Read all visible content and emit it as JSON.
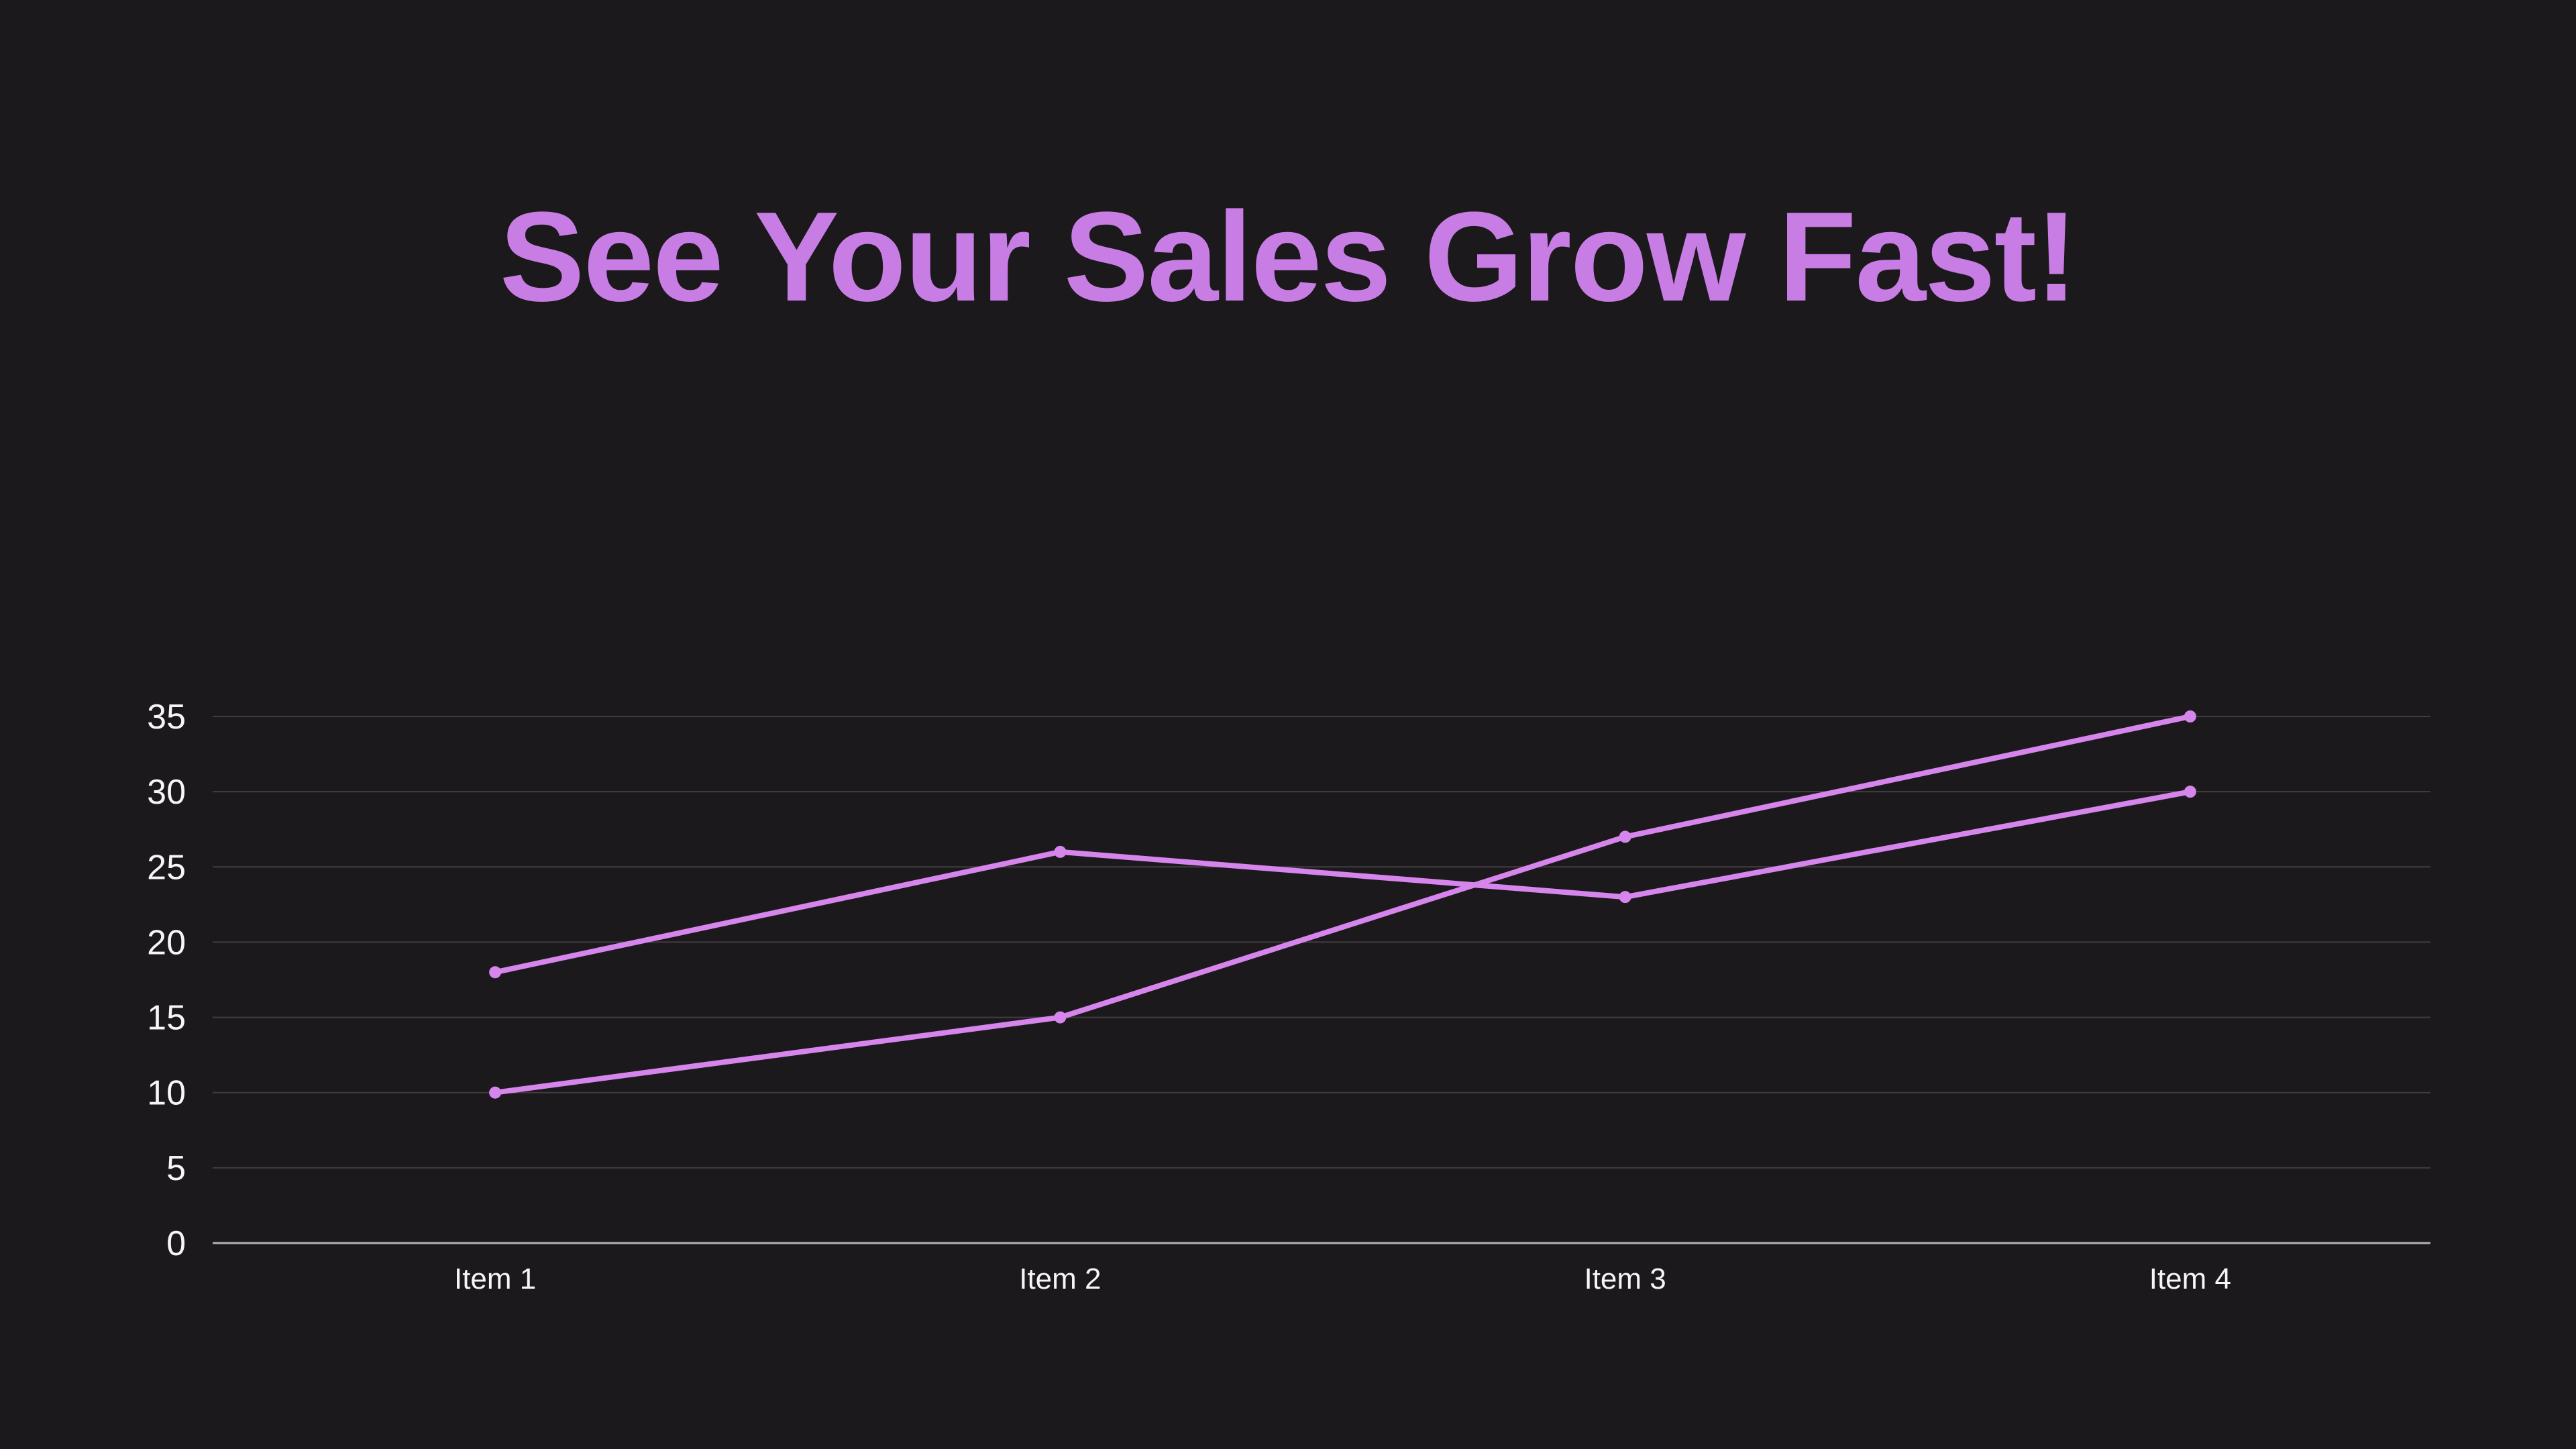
{
  "title": {
    "text": "See Your Sales Grow Fast!",
    "color": "#c77de4"
  },
  "chart_data": {
    "type": "line",
    "categories": [
      "Item 1",
      "Item 2",
      "Item 3",
      "Item 4"
    ],
    "series": [
      {
        "id": "series-1",
        "values": [
          18,
          26,
          23,
          30
        ]
      },
      {
        "id": "series-2",
        "values": [
          10,
          15,
          27,
          35
        ]
      }
    ],
    "y_ticks": [
      0,
      5,
      10,
      15,
      20,
      25,
      30,
      35
    ],
    "ylim": [
      0,
      35
    ],
    "grid": true,
    "legend": "none",
    "line_color": "#d685ec",
    "background": "#1c191c",
    "tick_label_color": "#f7f5f8",
    "gridline_color": "#413c42",
    "axis_line_color": "#b4b2b7"
  }
}
